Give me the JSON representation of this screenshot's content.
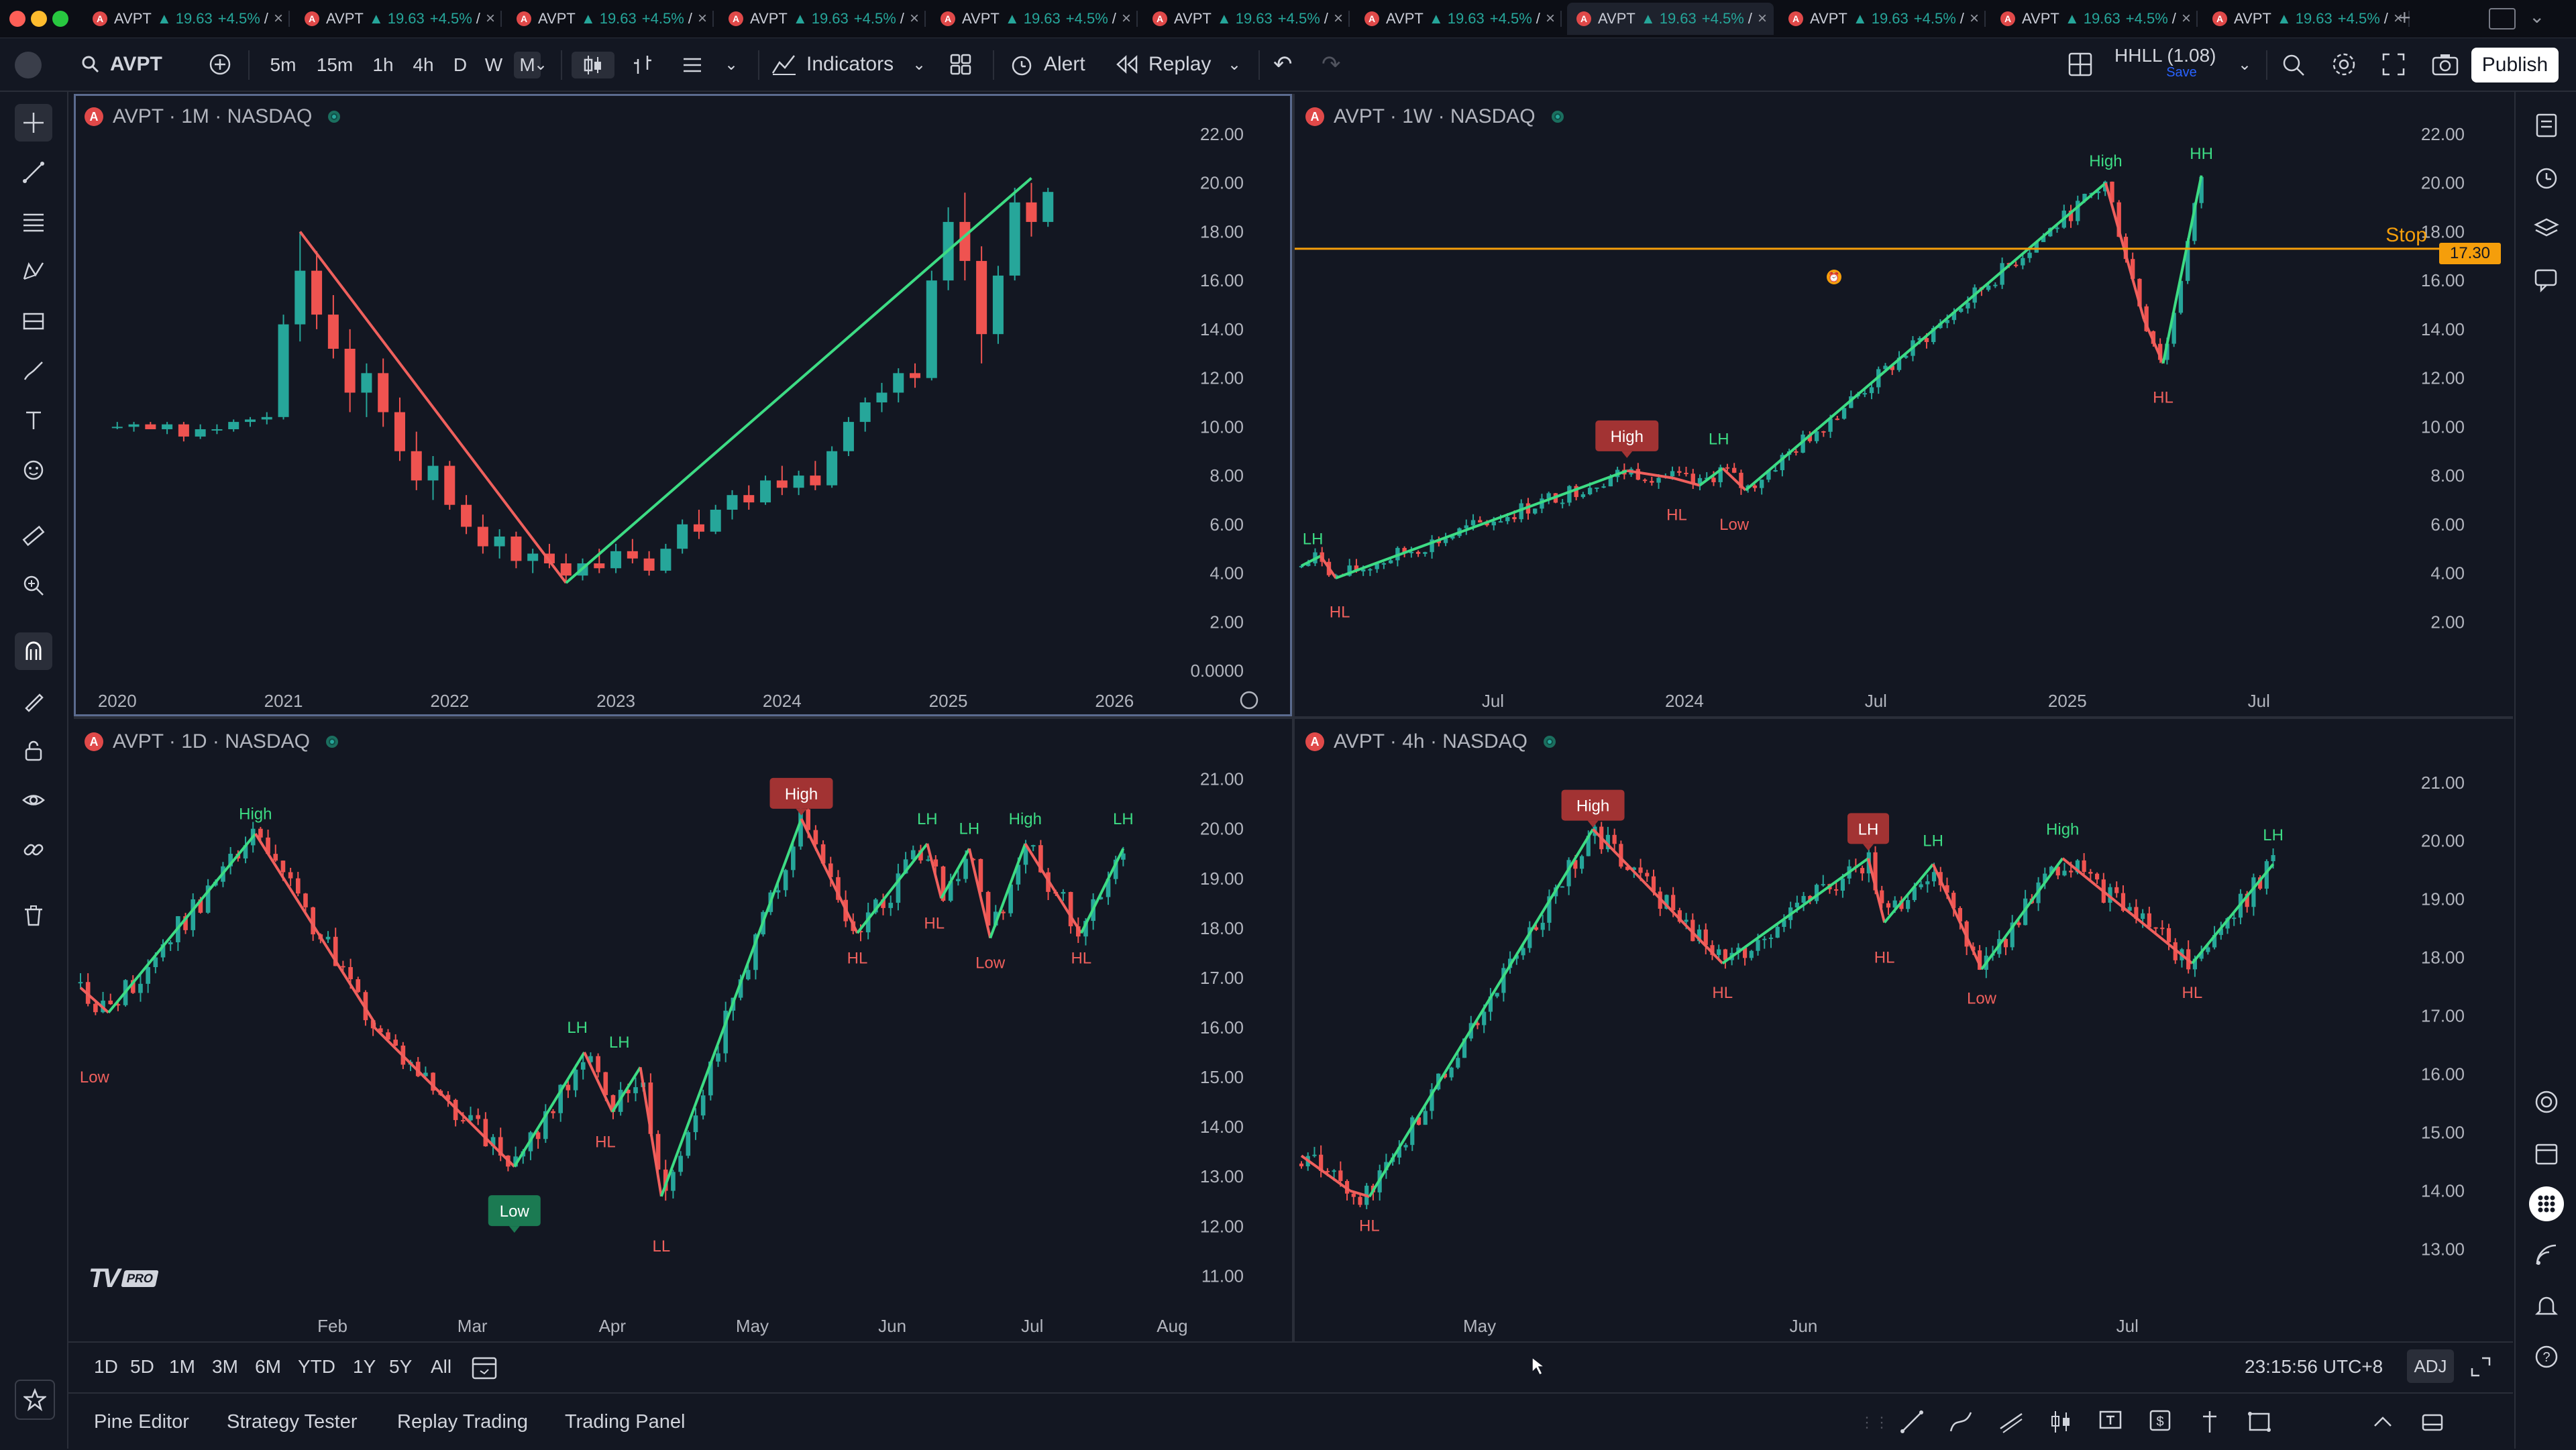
{
  "window": {
    "traffic_lights": [
      "#fe5f57",
      "#febc2e",
      "#28c840"
    ]
  },
  "tabs": {
    "items": [
      {
        "ticker": "AVPT",
        "price": "▲ 19.63",
        "change": "+4.5%",
        "suffix": "/"
      },
      {
        "ticker": "AVPT",
        "price": "▲ 19.63",
        "change": "+4.5%",
        "suffix": "/"
      },
      {
        "ticker": "AVPT",
        "price": "▲ 19.63",
        "change": "+4.5%",
        "suffix": "/"
      },
      {
        "ticker": "AVPT",
        "price": "▲ 19.63",
        "change": "+4.5%",
        "suffix": "/"
      },
      {
        "ticker": "AVPT",
        "price": "▲ 19.63",
        "change": "+4.5%",
        "suffix": "/"
      },
      {
        "ticker": "AVPT",
        "price": "▲ 19.63",
        "change": "+4.5%",
        "suffix": "/"
      },
      {
        "ticker": "AVPT",
        "price": "▲ 19.63",
        "change": "+4.5%",
        "suffix": "/"
      },
      {
        "ticker": "AVPT",
        "price": "▲ 19.63",
        "change": "+4.5%",
        "suffix": "/"
      },
      {
        "ticker": "AVPT",
        "price": "▲ 19.63",
        "change": "+4.5%",
        "suffix": "/"
      },
      {
        "ticker": "AVPT",
        "price": "▲ 19.63",
        "change": "+4.5%",
        "suffix": "/"
      },
      {
        "ticker": "AVPT",
        "price": "▲ 19.63",
        "change": "+4.5%",
        "suffix": "/"
      }
    ],
    "active_index": 7,
    "new_tab": "+"
  },
  "toolbar": {
    "symbol": "AVPT",
    "timeframes": [
      "5m",
      "15m",
      "1h",
      "4h",
      "D",
      "W",
      "M"
    ],
    "selected_timeframe": "M",
    "indicators_label": "Indicators",
    "alert_label": "Alert",
    "replay_label": "Replay",
    "layout_name": "HHLL (1.08)",
    "layout_sub": "Save",
    "publish_label": "Publish"
  },
  "panes": {
    "monthly": {
      "title": "AVPT · 1M · NASDAQ"
    },
    "weekly": {
      "title": "AVPT · 1W · NASDAQ",
      "stop_label": "Stop",
      "stop_price": "17.30"
    },
    "daily": {
      "title": "AVPT · 1D · NASDAQ",
      "watermark": "TV",
      "watermark_badge": "PRO"
    },
    "four_hour": {
      "title": "AVPT · 4h · NASDAQ"
    }
  },
  "range_bar": {
    "ranges": [
      "1D",
      "5D",
      "1M",
      "3M",
      "6M",
      "YTD",
      "1Y",
      "5Y",
      "All"
    ],
    "clock": "23:15:56 UTC+8",
    "adj_label": "ADJ"
  },
  "bottom_panel": {
    "tabs": [
      "Pine Editor",
      "Strategy Tester",
      "Replay Trading",
      "Trading Panel"
    ]
  },
  "colors": {
    "up": "#26a69a",
    "down": "#ef5350",
    "zig_up": "#3ddc84",
    "zig_down": "#f0605d",
    "stop": "#f59e0b",
    "bg": "#131722"
  },
  "chart_data": [
    {
      "type": "candlestick",
      "title": "AVPT · 1M · NASDAQ",
      "x_ticks": [
        "2020",
        "2021",
        "2022",
        "2023",
        "2024",
        "2025",
        "2026"
      ],
      "y_ticks": [
        "22.00",
        "20.00",
        "18.00",
        "16.00",
        "14.00",
        "12.00",
        "10.00",
        "8.00",
        "6.00",
        "4.00",
        "2.00",
        "0.0000"
      ],
      "ylim": [
        0,
        22
      ],
      "x_range": [
        2019.9,
        2026.6
      ],
      "ohlc": [
        [
          2020.0,
          10.0,
          10.2,
          9.9,
          10.0
        ],
        [
          2020.1,
          10.0,
          10.2,
          9.8,
          10.1
        ],
        [
          2020.2,
          10.1,
          10.2,
          9.9,
          9.9
        ],
        [
          2020.3,
          9.9,
          10.2,
          9.7,
          10.1
        ],
        [
          2020.4,
          10.1,
          10.2,
          9.4,
          9.6
        ],
        [
          2020.5,
          9.6,
          10.1,
          9.5,
          9.9
        ],
        [
          2020.6,
          9.9,
          10.1,
          9.7,
          9.9
        ],
        [
          2020.7,
          9.9,
          10.3,
          9.8,
          10.2
        ],
        [
          2020.8,
          10.2,
          10.4,
          10.0,
          10.3
        ],
        [
          2020.9,
          10.3,
          10.6,
          10.1,
          10.4
        ],
        [
          2021.0,
          10.4,
          14.6,
          10.3,
          14.2
        ],
        [
          2021.1,
          14.2,
          18.0,
          13.5,
          16.4
        ],
        [
          2021.2,
          16.4,
          17.2,
          14.0,
          14.6
        ],
        [
          2021.3,
          14.6,
          15.4,
          12.8,
          13.2
        ],
        [
          2021.4,
          13.2,
          14.0,
          10.6,
          11.4
        ],
        [
          2021.5,
          11.4,
          12.6,
          10.4,
          12.2
        ],
        [
          2021.6,
          12.2,
          12.8,
          10.0,
          10.6
        ],
        [
          2021.7,
          10.6,
          11.2,
          8.6,
          9.0
        ],
        [
          2021.8,
          9.0,
          9.8,
          7.4,
          7.8
        ],
        [
          2021.9,
          7.8,
          8.8,
          7.0,
          8.4
        ],
        [
          2022.0,
          8.4,
          8.6,
          6.6,
          6.8
        ],
        [
          2022.1,
          6.8,
          7.2,
          5.6,
          5.9
        ],
        [
          2022.2,
          5.9,
          6.4,
          4.8,
          5.1
        ],
        [
          2022.3,
          5.1,
          5.8,
          4.6,
          5.5
        ],
        [
          2022.4,
          5.5,
          5.7,
          4.2,
          4.5
        ],
        [
          2022.5,
          4.5,
          5.0,
          4.0,
          4.8
        ],
        [
          2022.6,
          4.8,
          5.2,
          4.2,
          4.4
        ],
        [
          2022.7,
          4.4,
          4.8,
          3.6,
          3.9
        ],
        [
          2022.8,
          3.9,
          4.6,
          3.7,
          4.4
        ],
        [
          2022.9,
          4.4,
          5.0,
          4.0,
          4.2
        ],
        [
          2023.0,
          4.2,
          5.2,
          4.0,
          4.9
        ],
        [
          2023.1,
          4.9,
          5.4,
          4.4,
          4.6
        ],
        [
          2023.2,
          4.6,
          4.9,
          3.9,
          4.1
        ],
        [
          2023.3,
          4.1,
          5.2,
          4.0,
          5.0
        ],
        [
          2023.4,
          5.0,
          6.2,
          4.8,
          6.0
        ],
        [
          2023.5,
          6.0,
          6.6,
          5.4,
          5.7
        ],
        [
          2023.6,
          5.7,
          6.8,
          5.6,
          6.6
        ],
        [
          2023.7,
          6.6,
          7.4,
          6.2,
          7.2
        ],
        [
          2023.8,
          7.2,
          7.6,
          6.6,
          6.9
        ],
        [
          2023.9,
          6.9,
          8.0,
          6.8,
          7.8
        ],
        [
          2024.0,
          7.8,
          8.4,
          7.2,
          7.5
        ],
        [
          2024.1,
          7.5,
          8.2,
          7.2,
          8.0
        ],
        [
          2024.2,
          8.0,
          8.6,
          7.4,
          7.6
        ],
        [
          2024.3,
          7.6,
          9.2,
          7.5,
          9.0
        ],
        [
          2024.4,
          9.0,
          10.4,
          8.8,
          10.2
        ],
        [
          2024.5,
          10.2,
          11.2,
          9.8,
          11.0
        ],
        [
          2024.6,
          11.0,
          11.8,
          10.6,
          11.4
        ],
        [
          2024.7,
          11.4,
          12.4,
          11.0,
          12.2
        ],
        [
          2024.8,
          12.2,
          12.6,
          11.6,
          12.0
        ],
        [
          2024.9,
          12.0,
          16.4,
          11.9,
          16.0
        ],
        [
          2025.0,
          16.0,
          19.0,
          15.6,
          18.4
        ],
        [
          2025.1,
          18.4,
          19.6,
          16.0,
          16.8
        ],
        [
          2025.2,
          16.8,
          17.4,
          12.6,
          13.8
        ],
        [
          2025.3,
          13.8,
          16.6,
          13.4,
          16.2
        ],
        [
          2025.4,
          16.2,
          19.8,
          16.0,
          19.2
        ],
        [
          2025.5,
          19.2,
          20.0,
          17.8,
          18.4
        ],
        [
          2025.6,
          18.4,
          19.8,
          18.2,
          19.63
        ]
      ],
      "zigzag": [
        [
          2021.1,
          18.0
        ],
        [
          2022.7,
          3.6
        ],
        [
          2025.5,
          20.2
        ]
      ],
      "labels": []
    },
    {
      "type": "candlestick",
      "title": "AVPT · 1W · NASDAQ",
      "x_ticks": [
        {
          "label": "Jul",
          "x": 2023.5
        },
        {
          "label": "2024",
          "x": 2024.0
        },
        {
          "label": "Jul",
          "x": 2024.5
        },
        {
          "label": "2025",
          "x": 2025.0
        },
        {
          "label": "Jul",
          "x": 2025.5
        }
      ],
      "y_ticks": [
        "22.00",
        "20.00",
        "18.00",
        "16.00",
        "14.00",
        "12.00",
        "10.00",
        "8.00",
        "6.00",
        "4.00",
        "2.00"
      ],
      "ylim": [
        0,
        22
      ],
      "x_range": [
        2023.0,
        2025.68
      ],
      "stop_level": 17.3,
      "ohlc_series": "generated from zigzag path",
      "zigzag": [
        [
          2023.0,
          4.3
        ],
        [
          2023.05,
          4.7
        ],
        [
          2023.09,
          3.8
        ],
        [
          2023.85,
          8.2
        ],
        [
          2023.97,
          7.9
        ],
        [
          2024.04,
          7.6
        ],
        [
          2024.1,
          8.3
        ],
        [
          2024.16,
          7.4
        ],
        [
          2025.1,
          20.0
        ],
        [
          2025.2,
          14.4
        ],
        [
          2025.25,
          12.6
        ],
        [
          2025.35,
          20.3
        ]
      ],
      "labels": [
        {
          "text": "LH",
          "x": 2023.03,
          "y": 5.4,
          "color": "up"
        },
        {
          "text": "HL",
          "x": 2023.1,
          "y": 2.4,
          "color": "down"
        },
        {
          "text": "High",
          "x": 2023.85,
          "y": 9.6,
          "color": "down",
          "boxed": true
        },
        {
          "text": "HL",
          "x": 2023.98,
          "y": 6.4,
          "color": "down"
        },
        {
          "text": "LH",
          "x": 2024.09,
          "y": 9.5,
          "color": "up"
        },
        {
          "text": "Low",
          "x": 2024.13,
          "y": 6.0,
          "color": "down"
        },
        {
          "text": "High",
          "x": 2025.1,
          "y": 20.9,
          "color": "up"
        },
        {
          "text": "HL",
          "x": 2025.25,
          "y": 11.2,
          "color": "down"
        },
        {
          "text": "HH",
          "x": 2025.35,
          "y": 21.2,
          "color": "up"
        }
      ]
    },
    {
      "type": "candlestick",
      "title": "AVPT · 1D · NASDAQ",
      "x_ticks": [
        {
          "label": "Feb",
          "x": 1.0
        },
        {
          "label": "Mar",
          "x": 2.0
        },
        {
          "label": "Apr",
          "x": 3.0
        },
        {
          "label": "May",
          "x": 4.0
        },
        {
          "label": "Jun",
          "x": 5.0
        },
        {
          "label": "Jul",
          "x": 6.0
        },
        {
          "label": "Aug",
          "x": 7.0
        }
      ],
      "y_ticks": [
        "21.00",
        "20.00",
        "19.00",
        "18.00",
        "17.00",
        "16.00",
        "15.00",
        "14.00",
        "13.00",
        "12.00",
        "11.00"
      ],
      "ylim": [
        10.6,
        21.4
      ],
      "x_range": [
        -0.8,
        7.3
      ],
      "zigzag": [
        [
          -0.8,
          16.8
        ],
        [
          -0.6,
          16.3
        ],
        [
          0.45,
          19.9
        ],
        [
          1.3,
          16.1
        ],
        [
          1.3,
          16.0
        ],
        [
          1.3,
          16.0
        ],
        [
          2.3,
          13.2
        ],
        [
          2.8,
          15.5
        ],
        [
          3.0,
          14.3
        ],
        [
          3.2,
          15.2
        ],
        [
          3.35,
          12.6
        ],
        [
          4.35,
          20.2
        ],
        [
          4.75,
          17.9
        ],
        [
          5.25,
          19.7
        ],
        [
          5.35,
          18.6
        ],
        [
          5.55,
          19.6
        ],
        [
          5.7,
          17.8
        ],
        [
          5.95,
          19.7
        ],
        [
          6.35,
          17.9
        ],
        [
          6.65,
          19.6
        ]
      ],
      "labels": [
        {
          "text": "Low",
          "x": -0.7,
          "y": 15.0,
          "color": "down"
        },
        {
          "text": "High",
          "x": 0.45,
          "y": 20.3,
          "color": "up"
        },
        {
          "text": "Low",
          "x": 2.3,
          "y": 12.3,
          "color": "up",
          "boxed": true
        },
        {
          "text": "LH",
          "x": 2.75,
          "y": 16.0,
          "color": "up"
        },
        {
          "text": "LH",
          "x": 3.05,
          "y": 15.7,
          "color": "up"
        },
        {
          "text": "HL",
          "x": 2.95,
          "y": 13.7,
          "color": "down"
        },
        {
          "text": "LL",
          "x": 3.35,
          "y": 11.6,
          "color": "down"
        },
        {
          "text": "High",
          "x": 4.35,
          "y": 20.7,
          "color": "down",
          "boxed": true
        },
        {
          "text": "HL",
          "x": 4.75,
          "y": 17.4,
          "color": "down"
        },
        {
          "text": "LH",
          "x": 5.25,
          "y": 20.2,
          "color": "up"
        },
        {
          "text": "HL",
          "x": 5.3,
          "y": 18.1,
          "color": "down"
        },
        {
          "text": "LH",
          "x": 5.55,
          "y": 20.0,
          "color": "up"
        },
        {
          "text": "Low",
          "x": 5.7,
          "y": 17.3,
          "color": "down"
        },
        {
          "text": "High",
          "x": 5.95,
          "y": 20.2,
          "color": "up"
        },
        {
          "text": "HL",
          "x": 6.35,
          "y": 17.4,
          "color": "down"
        },
        {
          "text": "LH",
          "x": 6.65,
          "y": 20.2,
          "color": "up"
        }
      ]
    },
    {
      "type": "candlestick",
      "title": "AVPT · 4h · NASDAQ",
      "x_ticks": [
        {
          "label": "May",
          "x": 1.0
        },
        {
          "label": "Jun",
          "x": 2.0
        },
        {
          "label": "Jul",
          "x": 3.0
        }
      ],
      "y_ticks": [
        "21.00",
        "20.00",
        "19.00",
        "18.00",
        "17.00",
        "16.00",
        "15.00",
        "14.00",
        "13.00"
      ],
      "ylim": [
        12.2,
        21.4
      ],
      "x_range": [
        0.45,
        3.95
      ],
      "zigzag": [
        [
          0.45,
          14.6
        ],
        [
          0.6,
          14.0
        ],
        [
          0.66,
          13.9
        ],
        [
          1.35,
          20.2
        ],
        [
          1.75,
          17.9
        ],
        [
          2.2,
          19.7
        ],
        [
          2.25,
          18.6
        ],
        [
          2.4,
          19.6
        ],
        [
          2.55,
          17.8
        ],
        [
          2.8,
          19.7
        ],
        [
          3.2,
          17.9
        ],
        [
          3.45,
          19.6
        ]
      ],
      "labels": [
        {
          "text": "HL",
          "x": 0.66,
          "y": 13.4,
          "color": "down"
        },
        {
          "text": "High",
          "x": 1.35,
          "y": 20.6,
          "color": "down",
          "boxed": true
        },
        {
          "text": "HL",
          "x": 1.75,
          "y": 17.4,
          "color": "down"
        },
        {
          "text": "LH",
          "x": 2.2,
          "y": 20.2,
          "color": "down",
          "boxed": true
        },
        {
          "text": "HL",
          "x": 2.25,
          "y": 18.0,
          "color": "down"
        },
        {
          "text": "LH",
          "x": 2.4,
          "y": 20.0,
          "color": "up"
        },
        {
          "text": "Low",
          "x": 2.55,
          "y": 17.3,
          "color": "down"
        },
        {
          "text": "High",
          "x": 2.8,
          "y": 20.2,
          "color": "up"
        },
        {
          "text": "HL",
          "x": 3.2,
          "y": 17.4,
          "color": "down"
        },
        {
          "text": "LH",
          "x": 3.45,
          "y": 20.1,
          "color": "up"
        }
      ]
    }
  ]
}
